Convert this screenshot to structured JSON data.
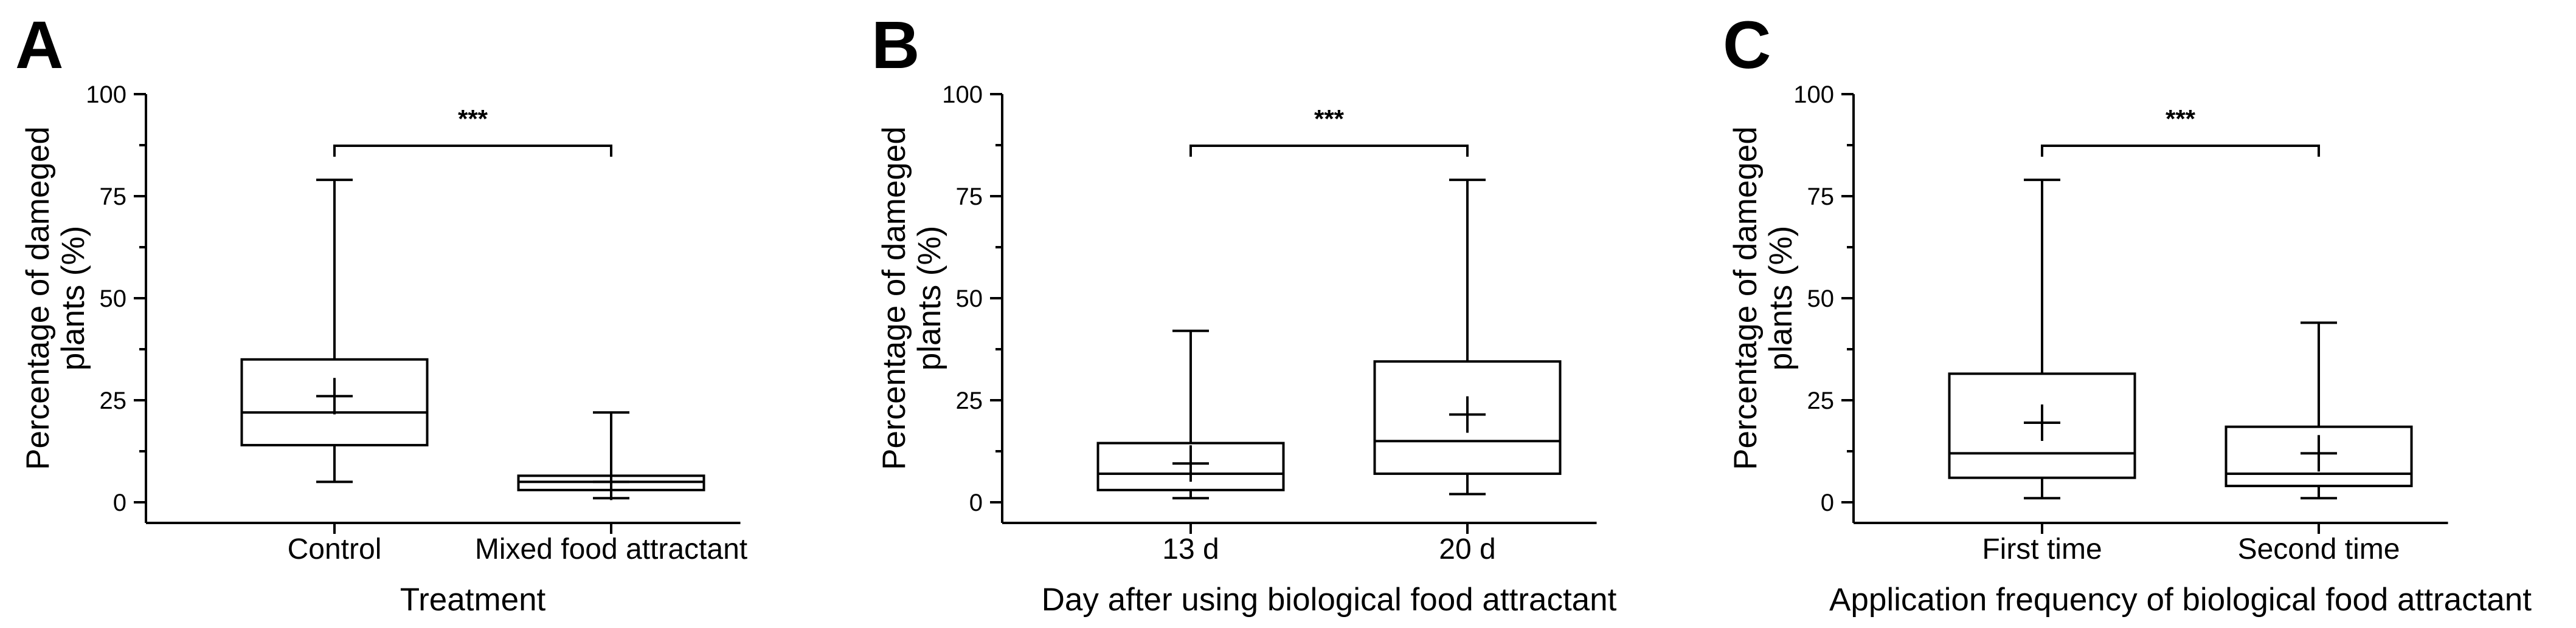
{
  "figure": {
    "ytick_labels": [
      "0",
      "25",
      "50",
      "75",
      "100"
    ]
  },
  "chart_data": [
    {
      "type": "box",
      "panel": "A",
      "title": "",
      "xlabel": "Treatment",
      "ylabel_line1": "Percentage of dameged",
      "ylabel_line2": "plants (%)",
      "ylim": [
        -5,
        100
      ],
      "yticks": [
        0,
        25,
        50,
        75,
        100
      ],
      "categories": [
        "Control",
        "Mixed food attractant"
      ],
      "boxes": [
        {
          "min": 5,
          "q1": 14,
          "median": 22,
          "q3": 35,
          "max": 79,
          "mean": 26
        },
        {
          "min": 1,
          "q1": 3,
          "median": 5,
          "q3": 6.5,
          "max": 22,
          "mean": 5
        }
      ],
      "significance": "***"
    },
    {
      "type": "box",
      "panel": "B",
      "title": "",
      "xlabel": "Day after using biological food attractant",
      "ylabel_line1": "Percentage of dameged",
      "ylabel_line2": "plants (%)",
      "ylim": [
        -5,
        100
      ],
      "yticks": [
        0,
        25,
        50,
        75,
        100
      ],
      "categories": [
        "13 d",
        "20 d"
      ],
      "boxes": [
        {
          "min": 1,
          "q1": 3,
          "median": 7,
          "q3": 14.5,
          "max": 42,
          "mean": 9.5
        },
        {
          "min": 2,
          "q1": 7,
          "median": 15,
          "q3": 34.5,
          "max": 79,
          "mean": 21.5
        }
      ],
      "significance": "***"
    },
    {
      "type": "box",
      "panel": "C",
      "title": "",
      "xlabel": "Application frequency of biological food attractant",
      "ylabel_line1": "Percentage of dameged",
      "ylabel_line2": "plants (%)",
      "ylim": [
        -5,
        100
      ],
      "yticks": [
        0,
        25,
        50,
        75,
        100
      ],
      "categories": [
        "First time",
        "Second time"
      ],
      "boxes": [
        {
          "min": 1,
          "q1": 6,
          "median": 12,
          "q3": 31.5,
          "max": 79,
          "mean": 19.5
        },
        {
          "min": 1,
          "q1": 4,
          "median": 7,
          "q3": 18.5,
          "max": 44,
          "mean": 12
        }
      ],
      "significance": "***"
    }
  ]
}
